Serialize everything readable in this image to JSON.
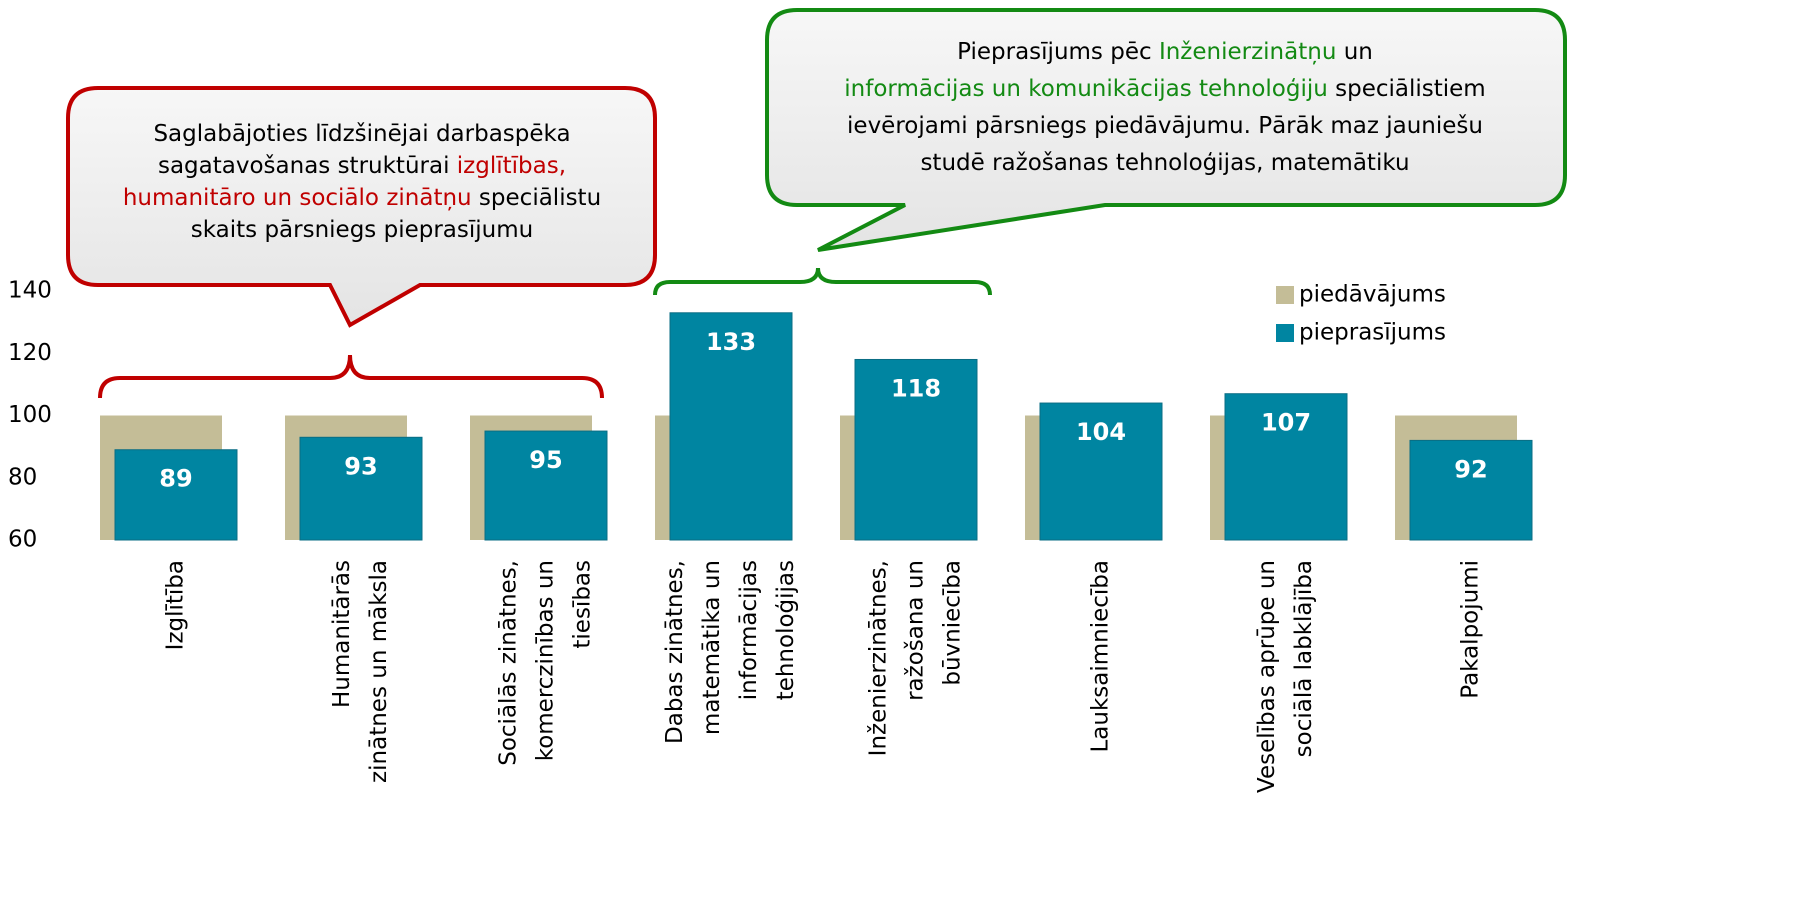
{
  "chart_data": {
    "type": "bar",
    "categories": [
      [
        "Izglītība"
      ],
      [
        "Humanitārās",
        "zinātnes un māksla"
      ],
      [
        "Sociālās zinātnes,",
        "komerczinības un",
        "tiesības"
      ],
      [
        "Dabas zinātnes,",
        "matemātika un",
        "informācijas",
        "tehnoloģijas"
      ],
      [
        "Inženierzinātnes,",
        "ražošana un",
        "būvniecība"
      ],
      [
        "Lauksaimniecība"
      ],
      [
        "Veselības aprūpe un",
        "sociālā labklājība"
      ],
      [
        "Pakalpojumi"
      ]
    ],
    "series": [
      {
        "name": "piedāvājums",
        "color": "#c4bd97",
        "values": [
          100,
          100,
          100,
          100,
          100,
          100,
          100,
          100
        ]
      },
      {
        "name": "pieprasījums",
        "color": "#0085a1",
        "values": [
          89,
          93,
          95,
          133,
          118,
          104,
          107,
          92
        ]
      }
    ],
    "ylim": [
      60,
      140
    ],
    "yticks": [
      60,
      80,
      100,
      120,
      140
    ],
    "grid": false,
    "legend": "upper right"
  },
  "annotations": [
    {
      "color": "#c00000",
      "lines": [
        [
          {
            "text": "Saglabājoties līdzšinējai darbaspēka",
            "color": "#000000"
          }
        ],
        [
          {
            "text": "sagatavošanas struktūrai ",
            "color": "#000000"
          },
          {
            "text": "izglītības,",
            "color": "#c00000"
          }
        ],
        [
          {
            "text": "humanitāro un sociālo zinātņu",
            "color": "#c00000"
          },
          {
            "text": " speciālistu",
            "color": "#000000"
          }
        ],
        [
          {
            "text": "skaits pārsniegs pieprasījumu",
            "color": "#000000"
          }
        ]
      ]
    },
    {
      "color": "#138a13",
      "lines": [
        [
          {
            "text": "Pieprasījums pēc ",
            "color": "#000000"
          },
          {
            "text": "Inženierzinātņu",
            "color": "#138a13"
          },
          {
            "text": " un",
            "color": "#000000"
          }
        ],
        [
          {
            "text": "informācijas un komunikācijas tehnoloģiju",
            "color": "#138a13"
          },
          {
            "text": " speciālistiem",
            "color": "#000000"
          }
        ],
        [
          {
            "text": "ievērojami pārsniegs piedāvājumu. Pārāk maz jauniešu",
            "color": "#000000"
          }
        ],
        [
          {
            "text": "studē ražošanas tehnoloģijas, matemātiku",
            "color": "#000000"
          }
        ]
      ]
    }
  ]
}
